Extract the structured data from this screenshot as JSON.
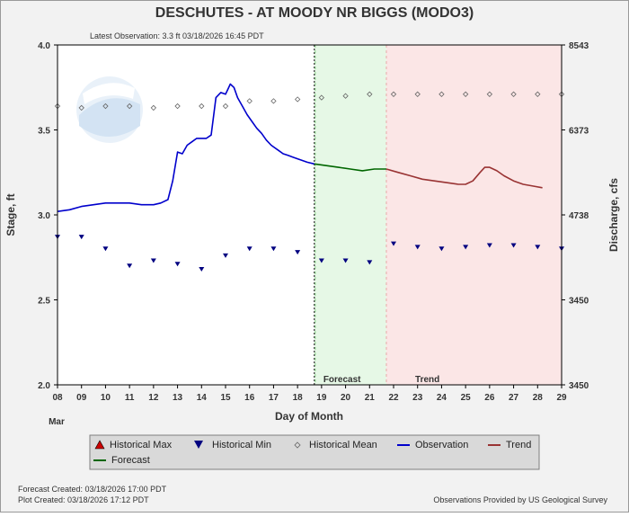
{
  "chart_data": {
    "type": "line",
    "title": "DESCHUTES - AT MOODY NR BIGGS  (MODO3)",
    "subtitle": "Latest Observation: 3.3 ft 03/18/2026 16:45 PDT",
    "xlabel": "Day of Month",
    "month_label": "Mar",
    "ylabel_left": "Stage, ft",
    "ylabel_right": "Discharge, cfs",
    "x_ticks": [
      "08",
      "09",
      "10",
      "11",
      "12",
      "13",
      "14",
      "15",
      "16",
      "17",
      "18",
      "19",
      "20",
      "21",
      "22",
      "23",
      "24",
      "25",
      "26",
      "27",
      "28",
      "29"
    ],
    "xlim": [
      8,
      29
    ],
    "ylim": [
      2.0,
      4.0
    ],
    "y_ticks_left": [
      "2.0",
      "2.5",
      "3.0",
      "3.5",
      "4.0"
    ],
    "y_ticks_left_values": [
      2.0,
      2.5,
      3.0,
      3.5,
      4.0
    ],
    "y_ticks_right": [
      "3450",
      "3450",
      "4738",
      "6373",
      "8543"
    ],
    "y_ticks_right_values": [
      2.0,
      2.5,
      3.0,
      3.5,
      4.0
    ],
    "forecast_start": 18.7,
    "trend_start": 21.7,
    "region_labels": {
      "forecast": "Forecast",
      "trend": "Trend"
    },
    "colors": {
      "observation": "#0000cc",
      "forecast": "#006600",
      "trend": "#993333",
      "historical_max": "#cc0000",
      "historical_min": "#000080",
      "historical_mean": "#666666",
      "forecast_region": "#e6f8e6",
      "trend_region": "#fbe6e6"
    },
    "series": [
      {
        "name": "Observation",
        "x": [
          8.0,
          8.5,
          9.0,
          9.5,
          10.0,
          10.5,
          11.0,
          11.5,
          12.0,
          12.3,
          12.6,
          12.8,
          13.0,
          13.2,
          13.4,
          13.6,
          13.8,
          14.0,
          14.2,
          14.4,
          14.6,
          14.8,
          15.0,
          15.1,
          15.2,
          15.35,
          15.5,
          15.7,
          15.9,
          16.1,
          16.3,
          16.5,
          16.7,
          16.9,
          17.0,
          17.2,
          17.4,
          17.6,
          17.8,
          18.0,
          18.2,
          18.4,
          18.7
        ],
        "y": [
          3.02,
          3.03,
          3.05,
          3.06,
          3.07,
          3.07,
          3.07,
          3.06,
          3.06,
          3.07,
          3.09,
          3.2,
          3.37,
          3.36,
          3.41,
          3.43,
          3.45,
          3.45,
          3.45,
          3.47,
          3.69,
          3.72,
          3.71,
          3.74,
          3.77,
          3.75,
          3.69,
          3.64,
          3.59,
          3.55,
          3.51,
          3.48,
          3.44,
          3.41,
          3.4,
          3.38,
          3.36,
          3.35,
          3.34,
          3.33,
          3.32,
          3.31,
          3.3
        ]
      },
      {
        "name": "Forecast",
        "x": [
          18.7,
          19.2,
          19.7,
          20.2,
          20.7,
          21.2,
          21.7
        ],
        "y": [
          3.3,
          3.29,
          3.28,
          3.27,
          3.26,
          3.27,
          3.27
        ]
      },
      {
        "name": "Trend",
        "x": [
          21.7,
          22.2,
          22.7,
          23.2,
          23.7,
          24.2,
          24.7,
          25.0,
          25.3,
          25.6,
          25.8,
          26.0,
          26.3,
          26.6,
          27.0,
          27.4,
          27.8,
          28.2
        ],
        "y": [
          3.27,
          3.25,
          3.23,
          3.21,
          3.2,
          3.19,
          3.18,
          3.18,
          3.2,
          3.25,
          3.28,
          3.28,
          3.26,
          3.23,
          3.2,
          3.18,
          3.17,
          3.16
        ]
      }
    ],
    "historical_mean": {
      "name": "Historical Mean",
      "x": [
        8,
        9,
        10,
        11,
        12,
        13,
        14,
        15,
        16,
        17,
        18,
        19,
        20,
        21,
        22,
        23,
        24,
        25,
        26,
        27,
        28,
        29
      ],
      "y": [
        3.64,
        3.63,
        3.64,
        3.64,
        3.63,
        3.64,
        3.64,
        3.64,
        3.67,
        3.67,
        3.68,
        3.69,
        3.7,
        3.71,
        3.71,
        3.71,
        3.71,
        3.71,
        3.71,
        3.71,
        3.71,
        3.71
      ]
    },
    "historical_min": {
      "name": "Historical Min",
      "x": [
        8,
        9,
        10,
        11,
        12,
        13,
        14,
        15,
        16,
        17,
        18,
        19,
        20,
        21,
        22,
        23,
        24,
        25,
        26,
        27,
        28,
        29
      ],
      "y": [
        2.87,
        2.87,
        2.8,
        2.7,
        2.73,
        2.71,
        2.68,
        2.76,
        2.8,
        2.8,
        2.78,
        2.73,
        2.73,
        2.72,
        2.83,
        2.81,
        2.8,
        2.81,
        2.82,
        2.82,
        2.81,
        2.8
      ]
    },
    "legend": {
      "items": [
        {
          "name": "Historical Max",
          "symbol": "triangle-up"
        },
        {
          "name": "Historical Min",
          "symbol": "triangle-down"
        },
        {
          "name": "Historical Mean",
          "symbol": "diamond"
        },
        {
          "name": "Observation",
          "symbol": "line"
        },
        {
          "name": "Trend",
          "symbol": "line"
        },
        {
          "name": "Forecast",
          "symbol": "line"
        }
      ]
    },
    "footer": {
      "forecast_created": "Forecast Created: 03/18/2026 17:00 PDT",
      "plot_created": "Plot Created: 03/18/2026 17:12 PDT",
      "credit": "Observations Provided by US Geological Survey"
    },
    "watermark_text": "NOAA",
    "grid": false
  }
}
